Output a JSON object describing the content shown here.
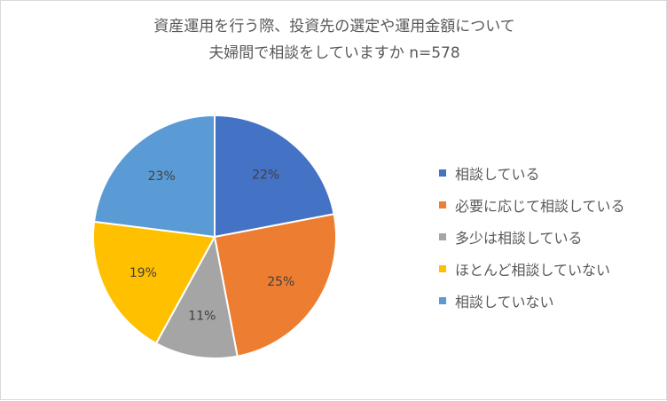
{
  "chart_data": {
    "type": "pie",
    "title_lines": [
      "資産運用を行う際、投資先の選定や運用金額について",
      "夫婦間で相談をしていますか n=578"
    ],
    "categories": [
      "相談している",
      "必要に応じて相談している",
      "多少は相談している",
      "ほとんど相談していない",
      "相談していない"
    ],
    "values": [
      22,
      25,
      11,
      19,
      23
    ],
    "data_labels": [
      "22%",
      "25%",
      "11%",
      "19%",
      "23%"
    ],
    "colors": [
      "#4472C4",
      "#ED7D31",
      "#A5A5A5",
      "#FFC000",
      "#5B9BD5"
    ],
    "legend_position": "right"
  }
}
